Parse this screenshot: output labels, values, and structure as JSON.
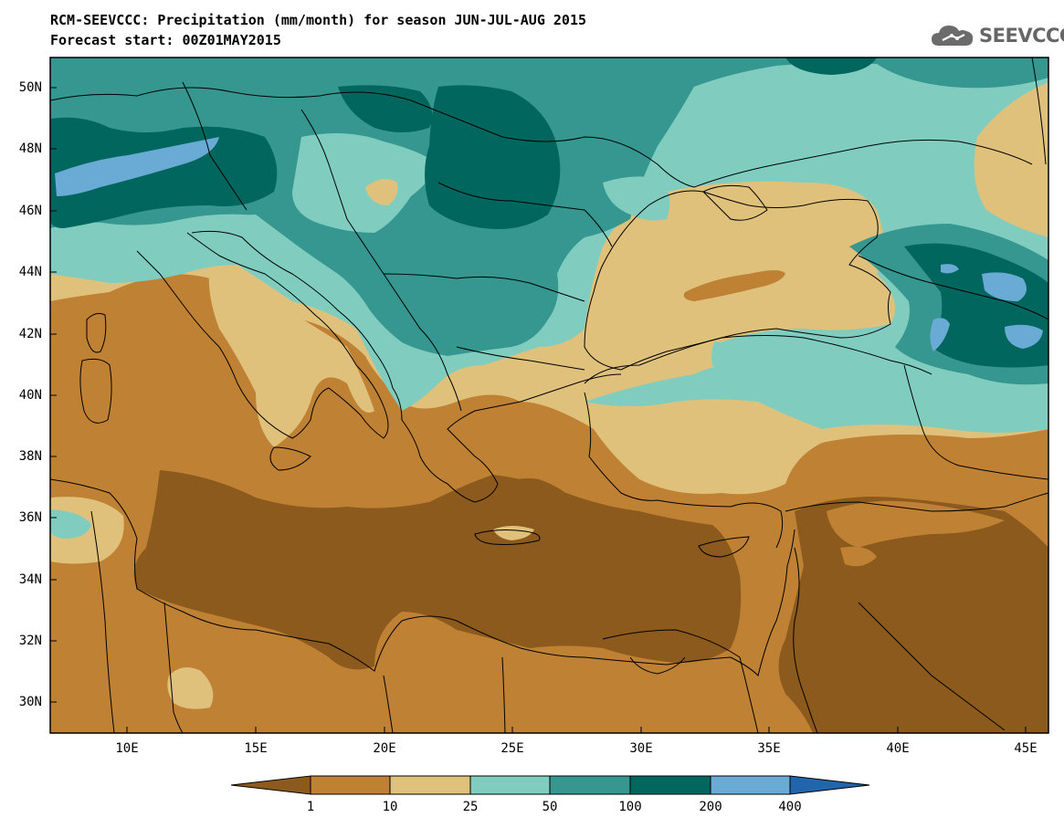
{
  "header": {
    "title_line1": "RCM-SEEVCCC: Precipitation (mm/month) for season JUN-JUL-AUG 2015",
    "title_line2": "Forecast start: 00Z01MAY2015",
    "logo_text": "SEEVCCC"
  },
  "map": {
    "lat_labels": [
      "50N",
      "48N",
      "46N",
      "44N",
      "42N",
      "40N",
      "38N",
      "36N",
      "34N",
      "32N",
      "30N"
    ],
    "lon_labels": [
      "10E",
      "15E",
      "20E",
      "25E",
      "30E",
      "35E",
      "40E",
      "45E"
    ]
  },
  "colorbar": {
    "labels": [
      "1",
      "10",
      "25",
      "50",
      "100",
      "200",
      "400"
    ],
    "colors": {
      "below_1": "#8c5a1c",
      "1_10": "#bf8134",
      "10_25": "#dfc17c",
      "25_50": "#80cdc0",
      "50_100": "#35978f",
      "100_200": "#01665e",
      "200_400": "#6aabd6",
      "above_400": "#2166ac"
    }
  }
}
